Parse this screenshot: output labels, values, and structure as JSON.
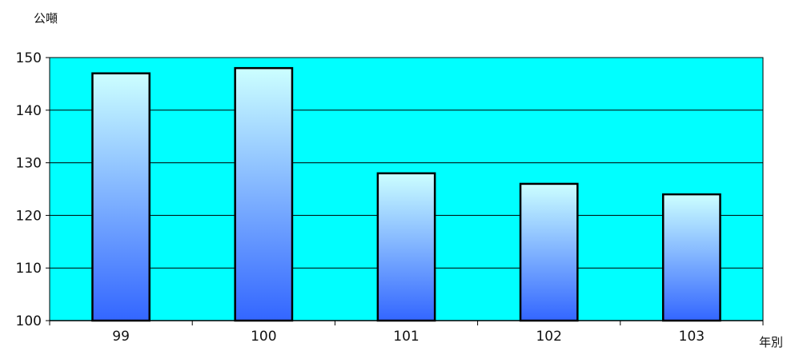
{
  "chart_data": {
    "type": "bar",
    "title": "",
    "ylabel": "公噸",
    "xlabel": "年別",
    "categories": [
      "99",
      "100",
      "101",
      "102",
      "103"
    ],
    "values": [
      147,
      148,
      128,
      126,
      124
    ],
    "ylim": [
      100,
      150
    ],
    "yticks": [
      100,
      110,
      120,
      130,
      140,
      150
    ],
    "grid": true,
    "legend": "none",
    "colors": {
      "plot_background": "#00FFFF",
      "bar_top": "#CCFFFF",
      "bar_bottom": "#3366FF",
      "bar_outline": "#000000",
      "gridline": "#000000"
    }
  }
}
